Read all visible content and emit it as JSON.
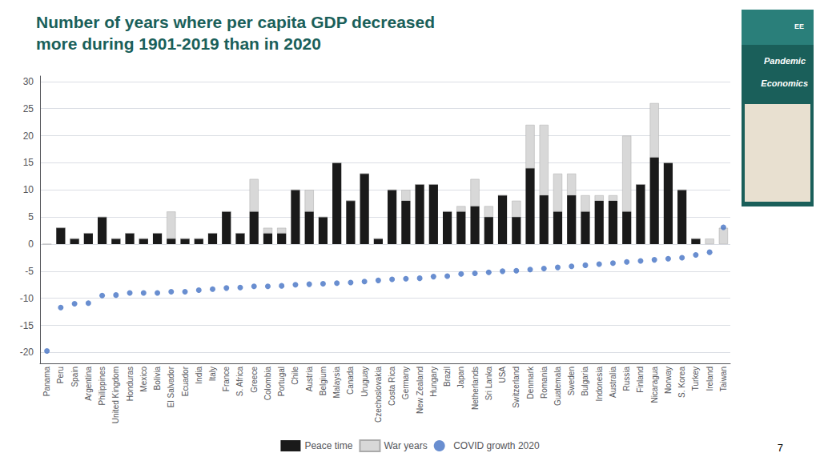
{
  "chart_data": {
    "type": "bar",
    "title": "Number of years where per capita GDP decreased",
    "subtitle": "more during 1901-2019 than in 2020",
    "annotations": [
      "EE",
      "Pandemic",
      "Economics",
      "7"
    ],
    "stacked": true,
    "grid": true,
    "legend": "bottom",
    "categories": [
      "Panama",
      "Peru",
      "Spain",
      "Argentina",
      "Philippines",
      "United Kingdom",
      "Honduras",
      "Mexico",
      "Bolivia",
      "El Salvador",
      "Ecuador",
      "India",
      "Italy",
      "France",
      "S. Africa",
      "Greece",
      "Colombia",
      "Portugal",
      "Chile",
      "Austria",
      "Belgium",
      "Malaysia",
      "Canada",
      "Uruguay",
      "Czechoslovakia",
      "Costa Rica",
      "Germany",
      "New Zealand",
      "Hungary",
      "Brazil",
      "Japan",
      "Netherlands",
      "Sri Lanka",
      "USA",
      "Switzerland",
      "Denmark",
      "Romania",
      "Guatemala",
      "Sweden",
      "Bulgaria",
      "Indonesia",
      "Australia",
      "Russia",
      "Finland",
      "Nicaragua",
      "Norway",
      "S. Korea",
      "Turkey",
      "Ireland",
      "Taiwan"
    ],
    "series": [
      {
        "name": "Peace time",
        "type": "bar",
        "color": "#1a1a1a",
        "values": [
          0,
          3,
          1,
          2,
          5,
          1,
          2,
          1,
          2,
          1,
          1,
          1,
          2,
          6,
          2,
          6,
          2,
          2,
          10,
          6,
          5,
          15,
          8,
          13,
          1,
          10,
          8,
          11,
          11,
          6,
          6,
          7,
          5,
          9,
          5,
          14,
          9,
          6,
          9,
          6,
          8,
          8,
          6,
          11,
          16,
          15,
          10,
          1,
          0,
          0
        ]
      },
      {
        "name": "War years",
        "type": "bar",
        "color": "#d8d8d8",
        "values": [
          0,
          0,
          0,
          0,
          0,
          0,
          0,
          0,
          0,
          5,
          0,
          0,
          0,
          0,
          0,
          6,
          1,
          1,
          0,
          4,
          0,
          0,
          0,
          0,
          0,
          0,
          2,
          0,
          0,
          0,
          1,
          5,
          2,
          0,
          3,
          8,
          13,
          7,
          4,
          3,
          1,
          1,
          14,
          0,
          10,
          0,
          0,
          0,
          1,
          3
        ]
      },
      {
        "name": "COVID growth 2020",
        "type": "scatter",
        "color": "#4472c4",
        "marker": "circle",
        "values": [
          -19.7,
          -11.7,
          -11.0,
          -10.9,
          -9.5,
          -9.4,
          -9.0,
          -9.0,
          -9.0,
          -8.8,
          -8.8,
          -8.5,
          -8.3,
          -8.1,
          -8.0,
          -7.8,
          -7.8,
          -7.7,
          -7.5,
          -7.4,
          -7.3,
          -7.2,
          -7.1,
          -6.9,
          -6.7,
          -6.5,
          -6.4,
          -6.3,
          -6.0,
          -5.9,
          -5.5,
          -5.4,
          -5.2,
          -5.0,
          -4.9,
          -4.7,
          -4.5,
          -4.3,
          -4.1,
          -3.9,
          -3.7,
          -3.5,
          -3.3,
          -3.1,
          -2.9,
          -2.7,
          -2.5,
          -2.0,
          -1.5,
          3.1
        ]
      }
    ],
    "ylim": [
      -22,
      31
    ],
    "yticks": [
      -20,
      -15,
      -10,
      -5,
      0,
      5,
      10,
      15,
      20,
      25,
      30
    ]
  }
}
